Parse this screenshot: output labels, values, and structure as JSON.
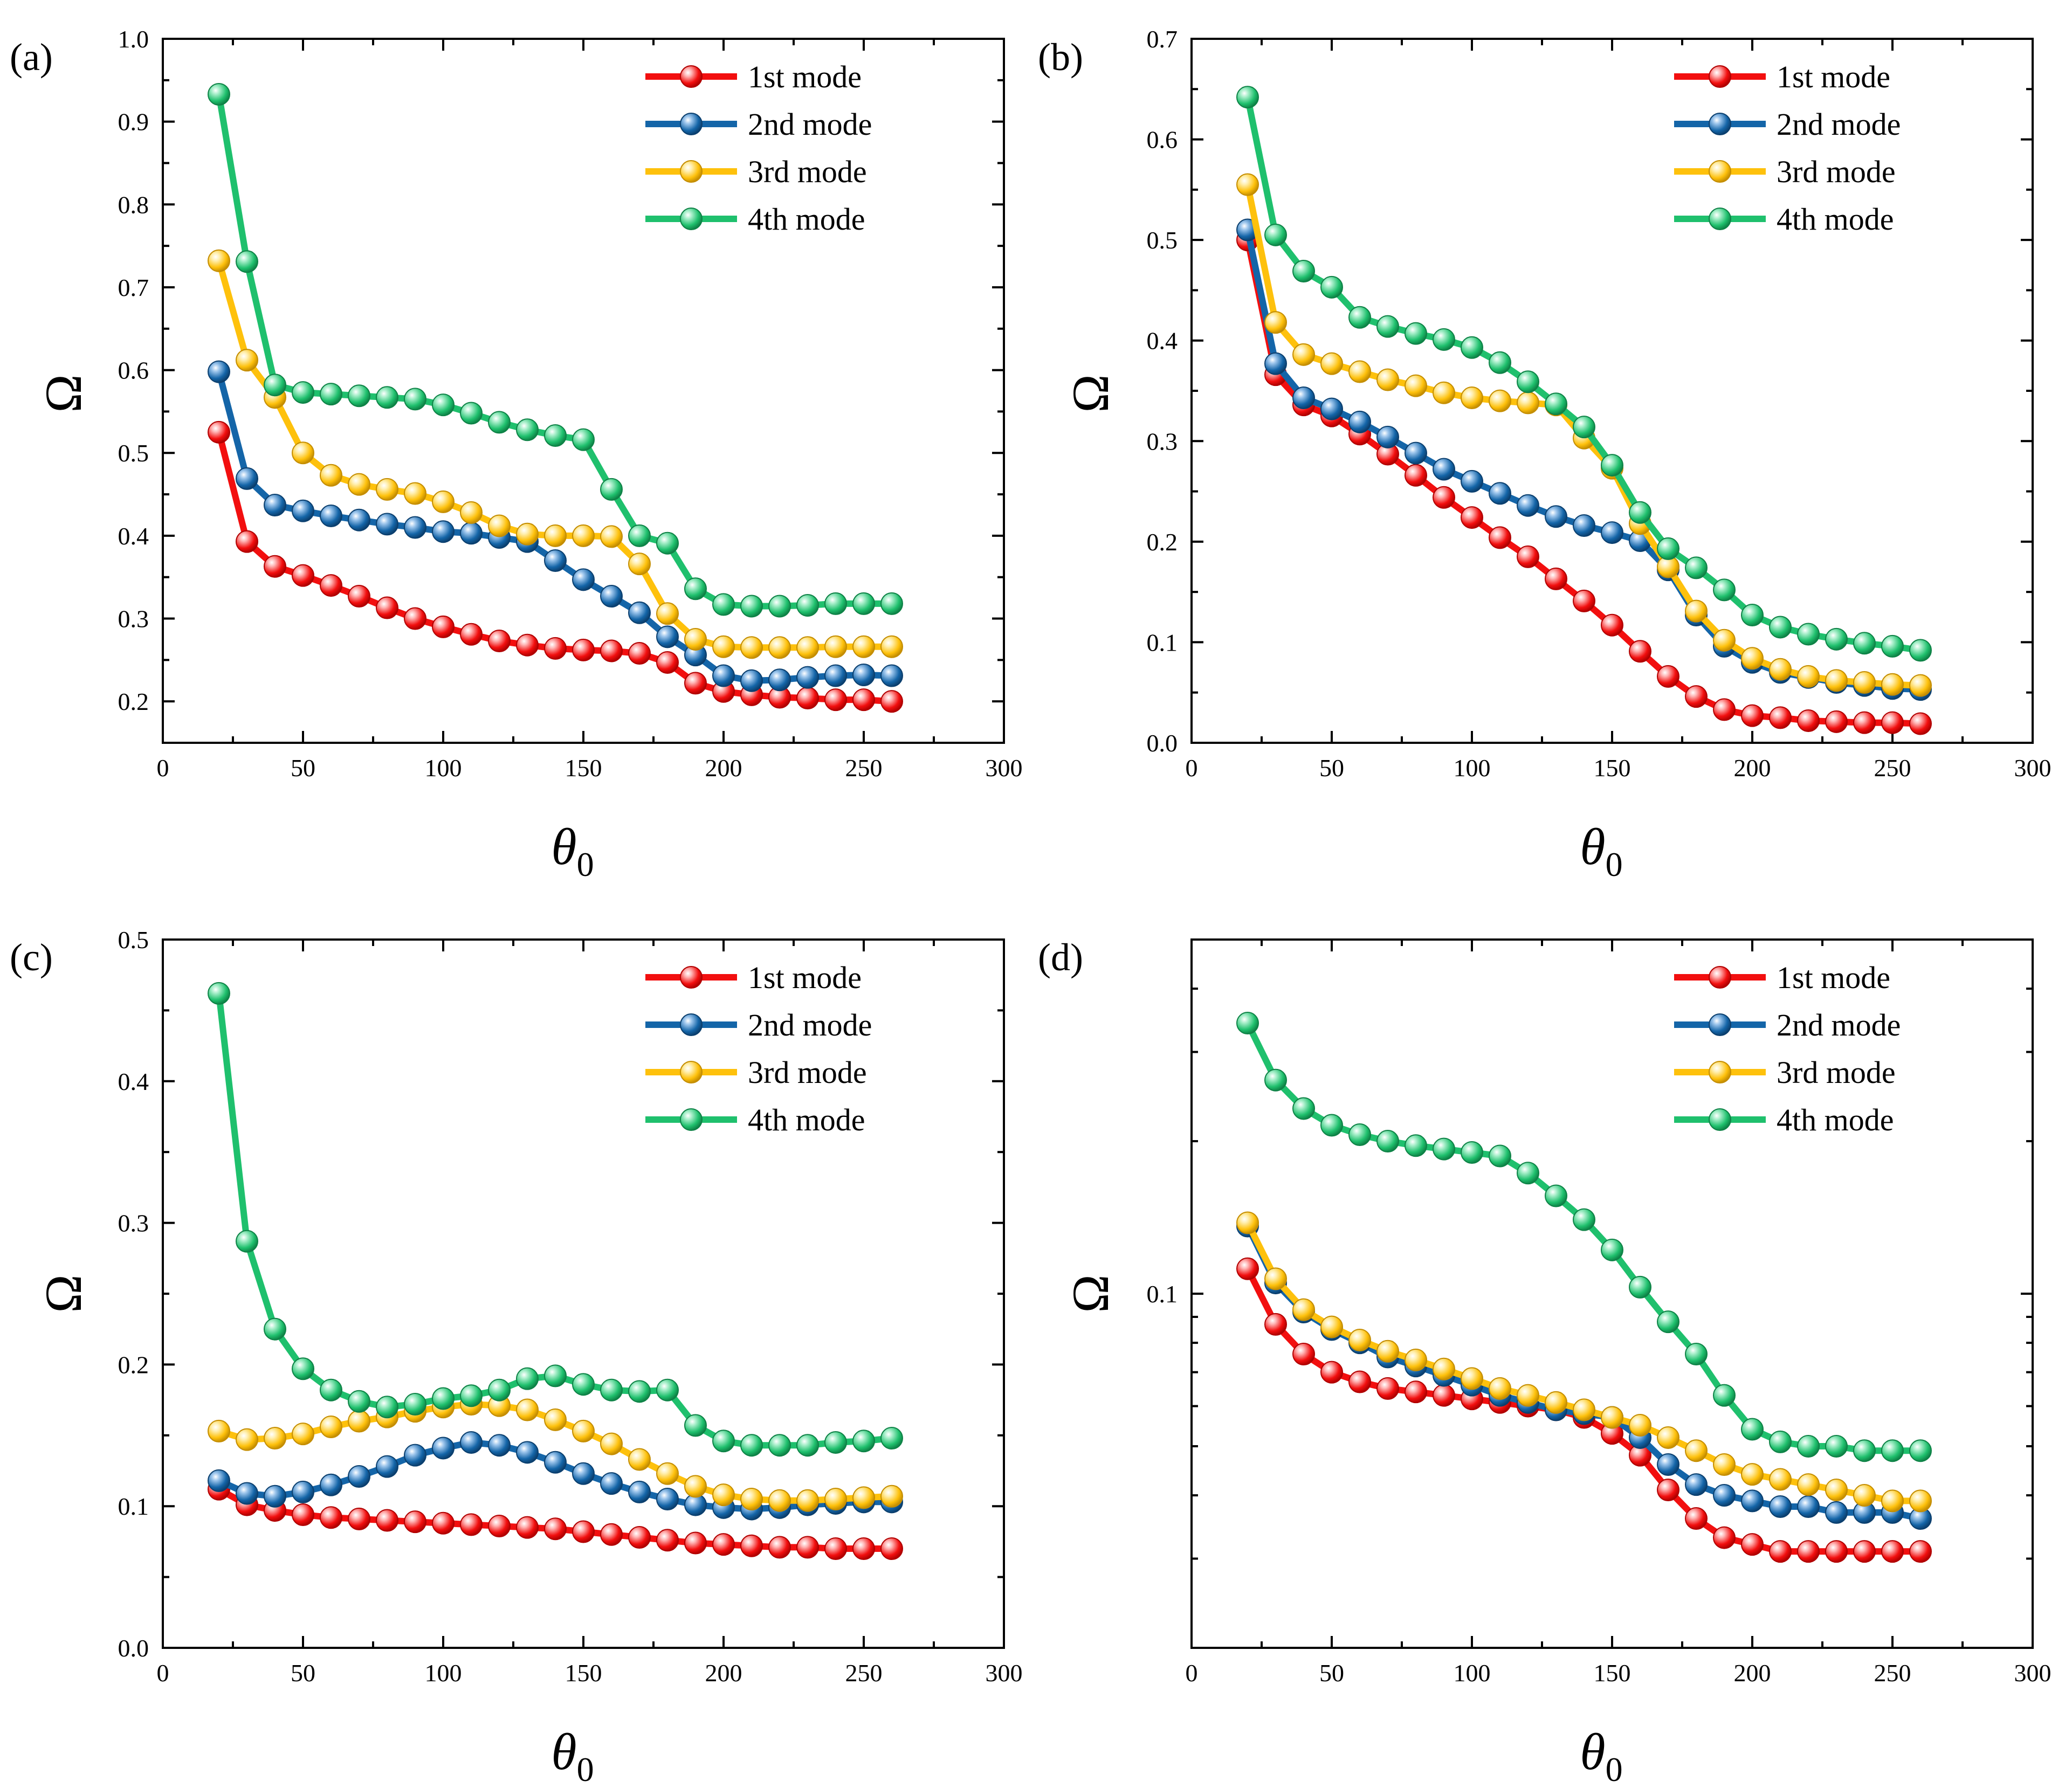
{
  "chart_data": [
    {
      "panel": "(a)",
      "type": "line",
      "xlabel": "θ",
      "xlabel_sub": "0",
      "ylabel": "Ω",
      "xlim": [
        0,
        300
      ],
      "ylim": [
        0.15,
        1.0
      ],
      "scale": "linear",
      "x_ticks": [
        0,
        50,
        100,
        150,
        200,
        250,
        300
      ],
      "y_ticks": [
        0.2,
        0.3,
        0.4,
        0.5,
        0.6,
        0.7,
        0.8,
        0.9,
        1.0
      ],
      "y_tick_labels": [
        "0.2",
        "0.3",
        "0.4",
        "0.5",
        "0.6",
        "0.7",
        "0.8",
        "0.9",
        "1.0"
      ],
      "legend_position": "top-right",
      "x": [
        20,
        30,
        40,
        50,
        60,
        70,
        80,
        90,
        100,
        110,
        120,
        130,
        140,
        150,
        160,
        170,
        180,
        190,
        200,
        210,
        220,
        230,
        240,
        250,
        260
      ],
      "series": [
        {
          "name": "1st mode",
          "values": [
            0.525,
            0.393,
            0.363,
            0.352,
            0.34,
            0.327,
            0.313,
            0.3,
            0.29,
            0.281,
            0.273,
            0.268,
            0.264,
            0.262,
            0.261,
            0.258,
            0.247,
            0.222,
            0.212,
            0.208,
            0.205,
            0.204,
            0.202,
            0.202,
            0.2
          ]
        },
        {
          "name": "2nd mode",
          "values": [
            0.598,
            0.469,
            0.437,
            0.43,
            0.424,
            0.419,
            0.414,
            0.41,
            0.405,
            0.403,
            0.398,
            0.393,
            0.37,
            0.347,
            0.327,
            0.307,
            0.278,
            0.256,
            0.231,
            0.225,
            0.226,
            0.229,
            0.231,
            0.232,
            0.231
          ]
        },
        {
          "name": "3rd mode",
          "values": [
            0.732,
            0.612,
            0.567,
            0.5,
            0.473,
            0.462,
            0.456,
            0.451,
            0.441,
            0.428,
            0.412,
            0.402,
            0.4,
            0.4,
            0.399,
            0.366,
            0.306,
            0.275,
            0.266,
            0.265,
            0.265,
            0.265,
            0.266,
            0.266,
            0.266
          ]
        },
        {
          "name": "4th mode",
          "values": [
            0.933,
            0.731,
            0.582,
            0.573,
            0.571,
            0.569,
            0.567,
            0.565,
            0.558,
            0.548,
            0.537,
            0.528,
            0.521,
            0.516,
            0.456,
            0.4,
            0.391,
            0.336,
            0.317,
            0.315,
            0.315,
            0.316,
            0.318,
            0.318,
            0.318
          ]
        }
      ]
    },
    {
      "panel": "(b)",
      "type": "line",
      "xlabel": "θ",
      "xlabel_sub": "0",
      "ylabel": "Ω",
      "xlim": [
        0,
        300
      ],
      "ylim": [
        0.0,
        0.7
      ],
      "scale": "linear",
      "x_ticks": [
        0,
        50,
        100,
        150,
        200,
        250,
        300
      ],
      "y_ticks": [
        0.0,
        0.1,
        0.2,
        0.3,
        0.4,
        0.5,
        0.6,
        0.7
      ],
      "y_tick_labels": [
        "0.0",
        "0.1",
        "0.2",
        "0.3",
        "0.4",
        "0.5",
        "0.6",
        "0.7"
      ],
      "legend_position": "top-right",
      "x": [
        20,
        30,
        40,
        50,
        60,
        70,
        80,
        90,
        100,
        110,
        120,
        130,
        140,
        150,
        160,
        170,
        180,
        190,
        200,
        210,
        220,
        230,
        240,
        250,
        260
      ],
      "series": [
        {
          "name": "1st mode",
          "values": [
            0.5,
            0.366,
            0.336,
            0.325,
            0.307,
            0.287,
            0.266,
            0.244,
            0.224,
            0.204,
            0.185,
            0.163,
            0.141,
            0.117,
            0.091,
            0.066,
            0.046,
            0.033,
            0.027,
            0.025,
            0.022,
            0.021,
            0.02,
            0.02,
            0.019
          ]
        },
        {
          "name": "2nd mode",
          "values": [
            0.51,
            0.377,
            0.343,
            0.332,
            0.319,
            0.304,
            0.288,
            0.272,
            0.26,
            0.248,
            0.236,
            0.225,
            0.216,
            0.209,
            0.201,
            0.172,
            0.127,
            0.096,
            0.08,
            0.07,
            0.065,
            0.06,
            0.057,
            0.054,
            0.053
          ]
        },
        {
          "name": "3rd mode",
          "values": [
            0.555,
            0.418,
            0.386,
            0.377,
            0.369,
            0.361,
            0.355,
            0.348,
            0.343,
            0.34,
            0.338,
            0.336,
            0.303,
            0.273,
            0.218,
            0.175,
            0.131,
            0.102,
            0.084,
            0.073,
            0.066,
            0.062,
            0.06,
            0.058,
            0.057
          ]
        },
        {
          "name": "4th mode",
          "values": [
            0.642,
            0.505,
            0.469,
            0.453,
            0.423,
            0.414,
            0.407,
            0.401,
            0.393,
            0.378,
            0.359,
            0.337,
            0.314,
            0.276,
            0.229,
            0.193,
            0.174,
            0.152,
            0.127,
            0.115,
            0.108,
            0.103,
            0.099,
            0.096,
            0.092
          ]
        }
      ]
    },
    {
      "panel": "(c)",
      "type": "line",
      "xlabel": "θ",
      "xlabel_sub": "0",
      "ylabel": "Ω",
      "xlim": [
        0,
        300
      ],
      "ylim": [
        0.0,
        0.5
      ],
      "scale": "linear",
      "x_ticks": [
        0,
        50,
        100,
        150,
        200,
        250,
        300
      ],
      "y_ticks": [
        0.0,
        0.1,
        0.2,
        0.3,
        0.4,
        0.5
      ],
      "y_tick_labels": [
        "0.0",
        "0.1",
        "0.2",
        "0.3",
        "0.4",
        "0.5"
      ],
      "legend_position": "top-right",
      "x": [
        20,
        30,
        40,
        50,
        60,
        70,
        80,
        90,
        100,
        110,
        120,
        130,
        140,
        150,
        160,
        170,
        180,
        190,
        200,
        210,
        220,
        230,
        240,
        250,
        260
      ],
      "series": [
        {
          "name": "1st mode",
          "values": [
            0.112,
            0.101,
            0.097,
            0.094,
            0.092,
            0.091,
            0.09,
            0.089,
            0.088,
            0.087,
            0.086,
            0.085,
            0.084,
            0.082,
            0.08,
            0.078,
            0.076,
            0.074,
            0.073,
            0.072,
            0.071,
            0.071,
            0.07,
            0.07,
            0.07
          ]
        },
        {
          "name": "2nd mode",
          "values": [
            0.118,
            0.109,
            0.107,
            0.11,
            0.115,
            0.121,
            0.128,
            0.136,
            0.141,
            0.145,
            0.143,
            0.138,
            0.131,
            0.123,
            0.116,
            0.11,
            0.105,
            0.101,
            0.099,
            0.098,
            0.099,
            0.101,
            0.102,
            0.103,
            0.103
          ]
        },
        {
          "name": "3rd mode",
          "values": [
            0.153,
            0.147,
            0.148,
            0.151,
            0.156,
            0.16,
            0.163,
            0.167,
            0.17,
            0.172,
            0.171,
            0.168,
            0.161,
            0.153,
            0.144,
            0.133,
            0.123,
            0.114,
            0.108,
            0.105,
            0.104,
            0.104,
            0.105,
            0.106,
            0.107
          ]
        },
        {
          "name": "4th mode",
          "values": [
            0.462,
            0.287,
            0.225,
            0.197,
            0.182,
            0.174,
            0.17,
            0.172,
            0.176,
            0.178,
            0.182,
            0.19,
            0.192,
            0.186,
            0.182,
            0.181,
            0.182,
            0.157,
            0.146,
            0.143,
            0.143,
            0.143,
            0.145,
            0.146,
            0.148
          ]
        }
      ]
    },
    {
      "panel": "(d)",
      "type": "line",
      "xlabel": "θ",
      "xlabel_sub": "0",
      "ylabel": "Ω",
      "xlim": [
        0,
        300
      ],
      "ylim": [
        0.02,
        0.5
      ],
      "scale": "log",
      "x_ticks": [
        0,
        50,
        100,
        150,
        200,
        250,
        300
      ],
      "y_ticks": [
        0.1
      ],
      "y_tick_labels": [
        "0.1"
      ],
      "legend_position": "top-right",
      "x": [
        20,
        30,
        40,
        50,
        60,
        70,
        80,
        90,
        100,
        110,
        120,
        130,
        140,
        150,
        160,
        170,
        180,
        190,
        200,
        210,
        220,
        230,
        240,
        250,
        260
      ],
      "series": [
        {
          "name": "1st mode",
          "values": [
            0.112,
            0.087,
            0.076,
            0.07,
            0.067,
            0.065,
            0.064,
            0.063,
            0.062,
            0.061,
            0.06,
            0.059,
            0.057,
            0.053,
            0.048,
            0.041,
            0.036,
            0.033,
            0.032,
            0.031,
            0.031,
            0.031,
            0.031,
            0.031,
            0.031
          ]
        },
        {
          "name": "2nd mode",
          "values": [
            0.136,
            0.105,
            0.092,
            0.085,
            0.08,
            0.075,
            0.072,
            0.069,
            0.066,
            0.063,
            0.061,
            0.059,
            0.058,
            0.057,
            0.052,
            0.046,
            0.042,
            0.04,
            0.039,
            0.038,
            0.038,
            0.037,
            0.037,
            0.037,
            0.036
          ]
        },
        {
          "name": "3rd mode",
          "values": [
            0.138,
            0.107,
            0.093,
            0.086,
            0.081,
            0.077,
            0.074,
            0.071,
            0.068,
            0.065,
            0.063,
            0.061,
            0.059,
            0.057,
            0.055,
            0.052,
            0.049,
            0.046,
            0.044,
            0.043,
            0.042,
            0.041,
            0.04,
            0.039,
            0.039
          ]
        },
        {
          "name": "4th mode",
          "values": [
            0.342,
            0.264,
            0.232,
            0.215,
            0.206,
            0.2,
            0.196,
            0.193,
            0.19,
            0.187,
            0.173,
            0.156,
            0.14,
            0.122,
            0.103,
            0.088,
            0.076,
            0.063,
            0.054,
            0.051,
            0.05,
            0.05,
            0.049,
            0.049,
            0.049
          ]
        }
      ]
    }
  ],
  "series_colors": {
    "1st mode": {
      "line": "#f20f0f",
      "light": "#ffb5b5",
      "dark": "#b00000"
    },
    "2nd mode": {
      "line": "#1465a8",
      "light": "#9cc5ec",
      "dark": "#0b3f6e"
    },
    "3rd mode": {
      "line": "#fec10c",
      "light": "#fff0b3",
      "dark": "#c48d00"
    },
    "4th mode": {
      "line": "#1fc06d",
      "light": "#a9efcb",
      "dark": "#0e8246"
    }
  }
}
